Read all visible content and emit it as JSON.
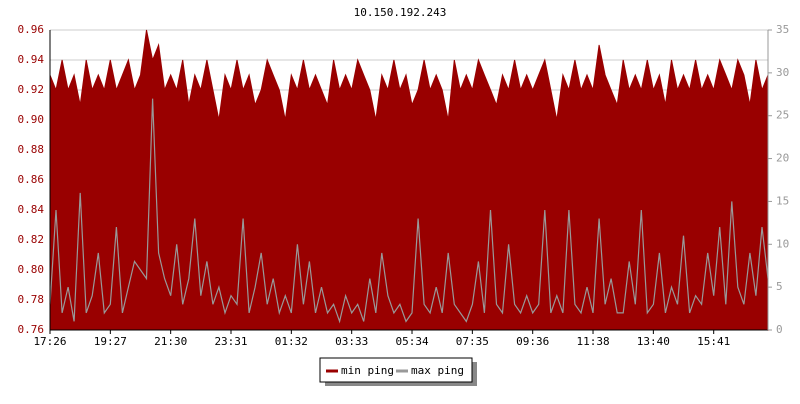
{
  "chart_data": {
    "type": "line",
    "title": "10.150.192.243",
    "categories": [
      "17:26",
      null,
      null,
      null,
      null,
      null,
      null,
      null,
      null,
      null,
      "19:27",
      null,
      null,
      null,
      null,
      null,
      null,
      null,
      null,
      null,
      "21:30",
      null,
      null,
      null,
      null,
      null,
      null,
      null,
      null,
      null,
      "23:31",
      null,
      null,
      null,
      null,
      null,
      null,
      null,
      null,
      null,
      "01:32",
      null,
      null,
      null,
      null,
      null,
      null,
      null,
      null,
      null,
      "03:33",
      null,
      null,
      null,
      null,
      null,
      null,
      null,
      null,
      null,
      "05:34",
      null,
      null,
      null,
      null,
      null,
      null,
      null,
      null,
      null,
      "07:35",
      null,
      null,
      null,
      null,
      null,
      null,
      null,
      null,
      null,
      "09:36",
      null,
      null,
      null,
      null,
      null,
      null,
      null,
      null,
      null,
      "11:38",
      null,
      null,
      null,
      null,
      null,
      null,
      null,
      null,
      null,
      "13:40",
      null,
      null,
      null,
      null,
      null,
      null,
      null,
      null,
      null,
      "15:41",
      null,
      null,
      null,
      null,
      null,
      null,
      null,
      null,
      null
    ],
    "series": [
      {
        "name": "min ping",
        "color": "#990000",
        "fill": true,
        "values": [
          0.93,
          0.92,
          0.94,
          0.92,
          0.93,
          0.91,
          0.94,
          0.92,
          0.93,
          0.92,
          0.94,
          0.92,
          0.93,
          0.94,
          0.92,
          0.93,
          0.96,
          0.94,
          0.95,
          0.92,
          0.93,
          0.92,
          0.94,
          0.91,
          0.93,
          0.92,
          0.94,
          0.92,
          0.9,
          0.93,
          0.92,
          0.94,
          0.92,
          0.93,
          0.91,
          0.92,
          0.94,
          0.93,
          0.92,
          0.9,
          0.93,
          0.92,
          0.94,
          0.92,
          0.93,
          0.92,
          0.91,
          0.94,
          0.92,
          0.93,
          0.92,
          0.94,
          0.93,
          0.92,
          0.9,
          0.93,
          0.92,
          0.94,
          0.92,
          0.93,
          0.91,
          0.92,
          0.94,
          0.92,
          0.93,
          0.92,
          0.9,
          0.94,
          0.92,
          0.93,
          0.92,
          0.94,
          0.93,
          0.92,
          0.91,
          0.93,
          0.92,
          0.94,
          0.92,
          0.93,
          0.92,
          0.93,
          0.94,
          0.92,
          0.9,
          0.93,
          0.92,
          0.94,
          0.92,
          0.93,
          0.92,
          0.95,
          0.93,
          0.92,
          0.91,
          0.94,
          0.92,
          0.93,
          0.92,
          0.94,
          0.92,
          0.93,
          0.91,
          0.94,
          0.92,
          0.93,
          0.92,
          0.94,
          0.92,
          0.93,
          0.92,
          0.94,
          0.93,
          0.92,
          0.94,
          0.93,
          0.91,
          0.94,
          0.92,
          0.93
        ]
      },
      {
        "name": "max ping",
        "color": "#999999",
        "axis": "y2",
        "values": [
          3,
          14,
          2,
          5,
          1,
          16,
          2,
          4,
          9,
          2,
          3,
          12,
          2,
          5,
          8,
          7,
          6,
          27,
          9,
          6,
          4,
          10,
          3,
          6,
          13,
          4,
          8,
          3,
          5,
          2,
          4,
          3,
          13,
          2,
          5,
          9,
          3,
          6,
          2,
          4,
          2,
          10,
          3,
          8,
          2,
          5,
          2,
          3,
          1,
          4,
          2,
          3,
          1,
          6,
          2,
          9,
          4,
          2,
          3,
          1,
          2,
          13,
          3,
          2,
          5,
          2,
          9,
          3,
          2,
          1,
          3,
          8,
          2,
          14,
          3,
          2,
          10,
          3,
          2,
          4,
          2,
          3,
          14,
          2,
          4,
          2,
          14,
          3,
          2,
          5,
          2,
          13,
          3,
          6,
          2,
          2,
          8,
          3,
          14,
          2,
          3,
          9,
          2,
          5,
          3,
          11,
          2,
          4,
          3,
          9,
          4,
          12,
          3,
          15,
          5,
          3,
          9,
          4,
          12,
          6
        ]
      }
    ],
    "ylim": [
      0.76,
      0.96
    ],
    "yticks": [
      0.76,
      0.78,
      {
        "value": 0.8,
        "label": "0.80"
      },
      0.82,
      0.84,
      0.86,
      0.88,
      {
        "value": 0.9,
        "label": "0.90"
      },
      0.92,
      0.94,
      0.96
    ],
    "y2lim": [
      0,
      35
    ],
    "y2ticks": [
      0,
      5,
      10,
      15,
      20,
      25,
      30,
      35
    ],
    "grid": true
  }
}
